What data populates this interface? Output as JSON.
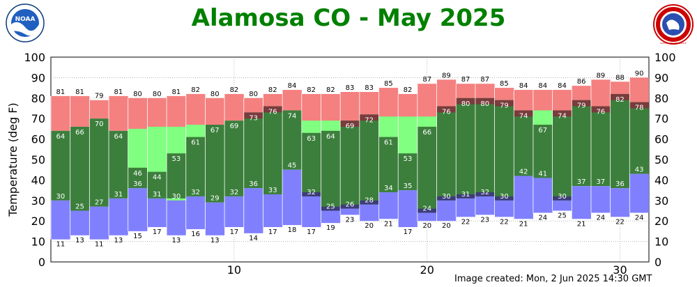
{
  "title": "Alamosa CO - May 2025",
  "footer": "Image created: Mon, 2 Jun 2025 14:30 GMT",
  "logos": {
    "left": {
      "text": "NOAA",
      "icon": "noaa-logo"
    },
    "right": {
      "text": "NATIONAL WEATHER SERVICE",
      "icon": "nws-logo"
    }
  },
  "colors": {
    "record_range": "#f58080",
    "normal_range": "#80ff80",
    "actual_range": "#3c7f3c",
    "record_low_range": "#8080ff",
    "actual_above_normal": "#783c3c",
    "actual_below_normal": "#3c3c78",
    "grid": "#888888"
  },
  "chart_data": {
    "type": "bar",
    "ylabel": "Temperature (deg F)",
    "ylim": [
      0,
      100
    ],
    "yticks": [
      0,
      10,
      20,
      30,
      40,
      50,
      60,
      70,
      80,
      90,
      100
    ],
    "xticks": [
      10,
      20,
      30
    ],
    "days": [
      1,
      2,
      3,
      4,
      5,
      6,
      7,
      8,
      9,
      10,
      11,
      12,
      13,
      14,
      15,
      16,
      17,
      18,
      19,
      20,
      21,
      22,
      23,
      24,
      25,
      26,
      27,
      28,
      29,
      30,
      31
    ],
    "series": [
      {
        "name": "record_high",
        "values": [
          81,
          81,
          79,
          81,
          80,
          80,
          81,
          82,
          80,
          82,
          80,
          82,
          84,
          82,
          82,
          83,
          83,
          85,
          82,
          87,
          89,
          87,
          87,
          85,
          84,
          84,
          84,
          86,
          89,
          88,
          90
        ]
      },
      {
        "name": "actual_high",
        "values": [
          64,
          66,
          70,
          64,
          46,
          44,
          53,
          61,
          67,
          69,
          73,
          76,
          74,
          63,
          64,
          69,
          72,
          61,
          53,
          66,
          76,
          80,
          80,
          79,
          74,
          67,
          74,
          79,
          76,
          82,
          78
        ]
      },
      {
        "name": "normal_high",
        "values": [
          null,
          null,
          null,
          null,
          65,
          66,
          66,
          67,
          null,
          null,
          null,
          null,
          69,
          69,
          69,
          null,
          null,
          71,
          71,
          71,
          null,
          null,
          null,
          null,
          null,
          74,
          null,
          null,
          null,
          null,
          null
        ]
      },
      {
        "name": "normal_low",
        "values": [
          null,
          null,
          null,
          null,
          31,
          31,
          31,
          null,
          null,
          null,
          33,
          33,
          33,
          null,
          null,
          null,
          null,
          null,
          null,
          null,
          null,
          null,
          null,
          null,
          36,
          36,
          null,
          null,
          null,
          null,
          37
        ]
      },
      {
        "name": "actual_low",
        "values": [
          30,
          25,
          27,
          31,
          36,
          31,
          30,
          32,
          29,
          32,
          36,
          33,
          45,
          32,
          25,
          26,
          28,
          34,
          35,
          24,
          30,
          31,
          32,
          30,
          42,
          41,
          30,
          37,
          37,
          36,
          43
        ]
      },
      {
        "name": "record_low",
        "values": [
          11,
          13,
          11,
          13,
          15,
          17,
          13,
          16,
          13,
          17,
          14,
          17,
          18,
          17,
          19,
          23,
          20,
          21,
          17,
          20,
          20,
          22,
          23,
          22,
          21,
          24,
          25,
          21,
          24,
          22,
          24
        ]
      }
    ]
  }
}
